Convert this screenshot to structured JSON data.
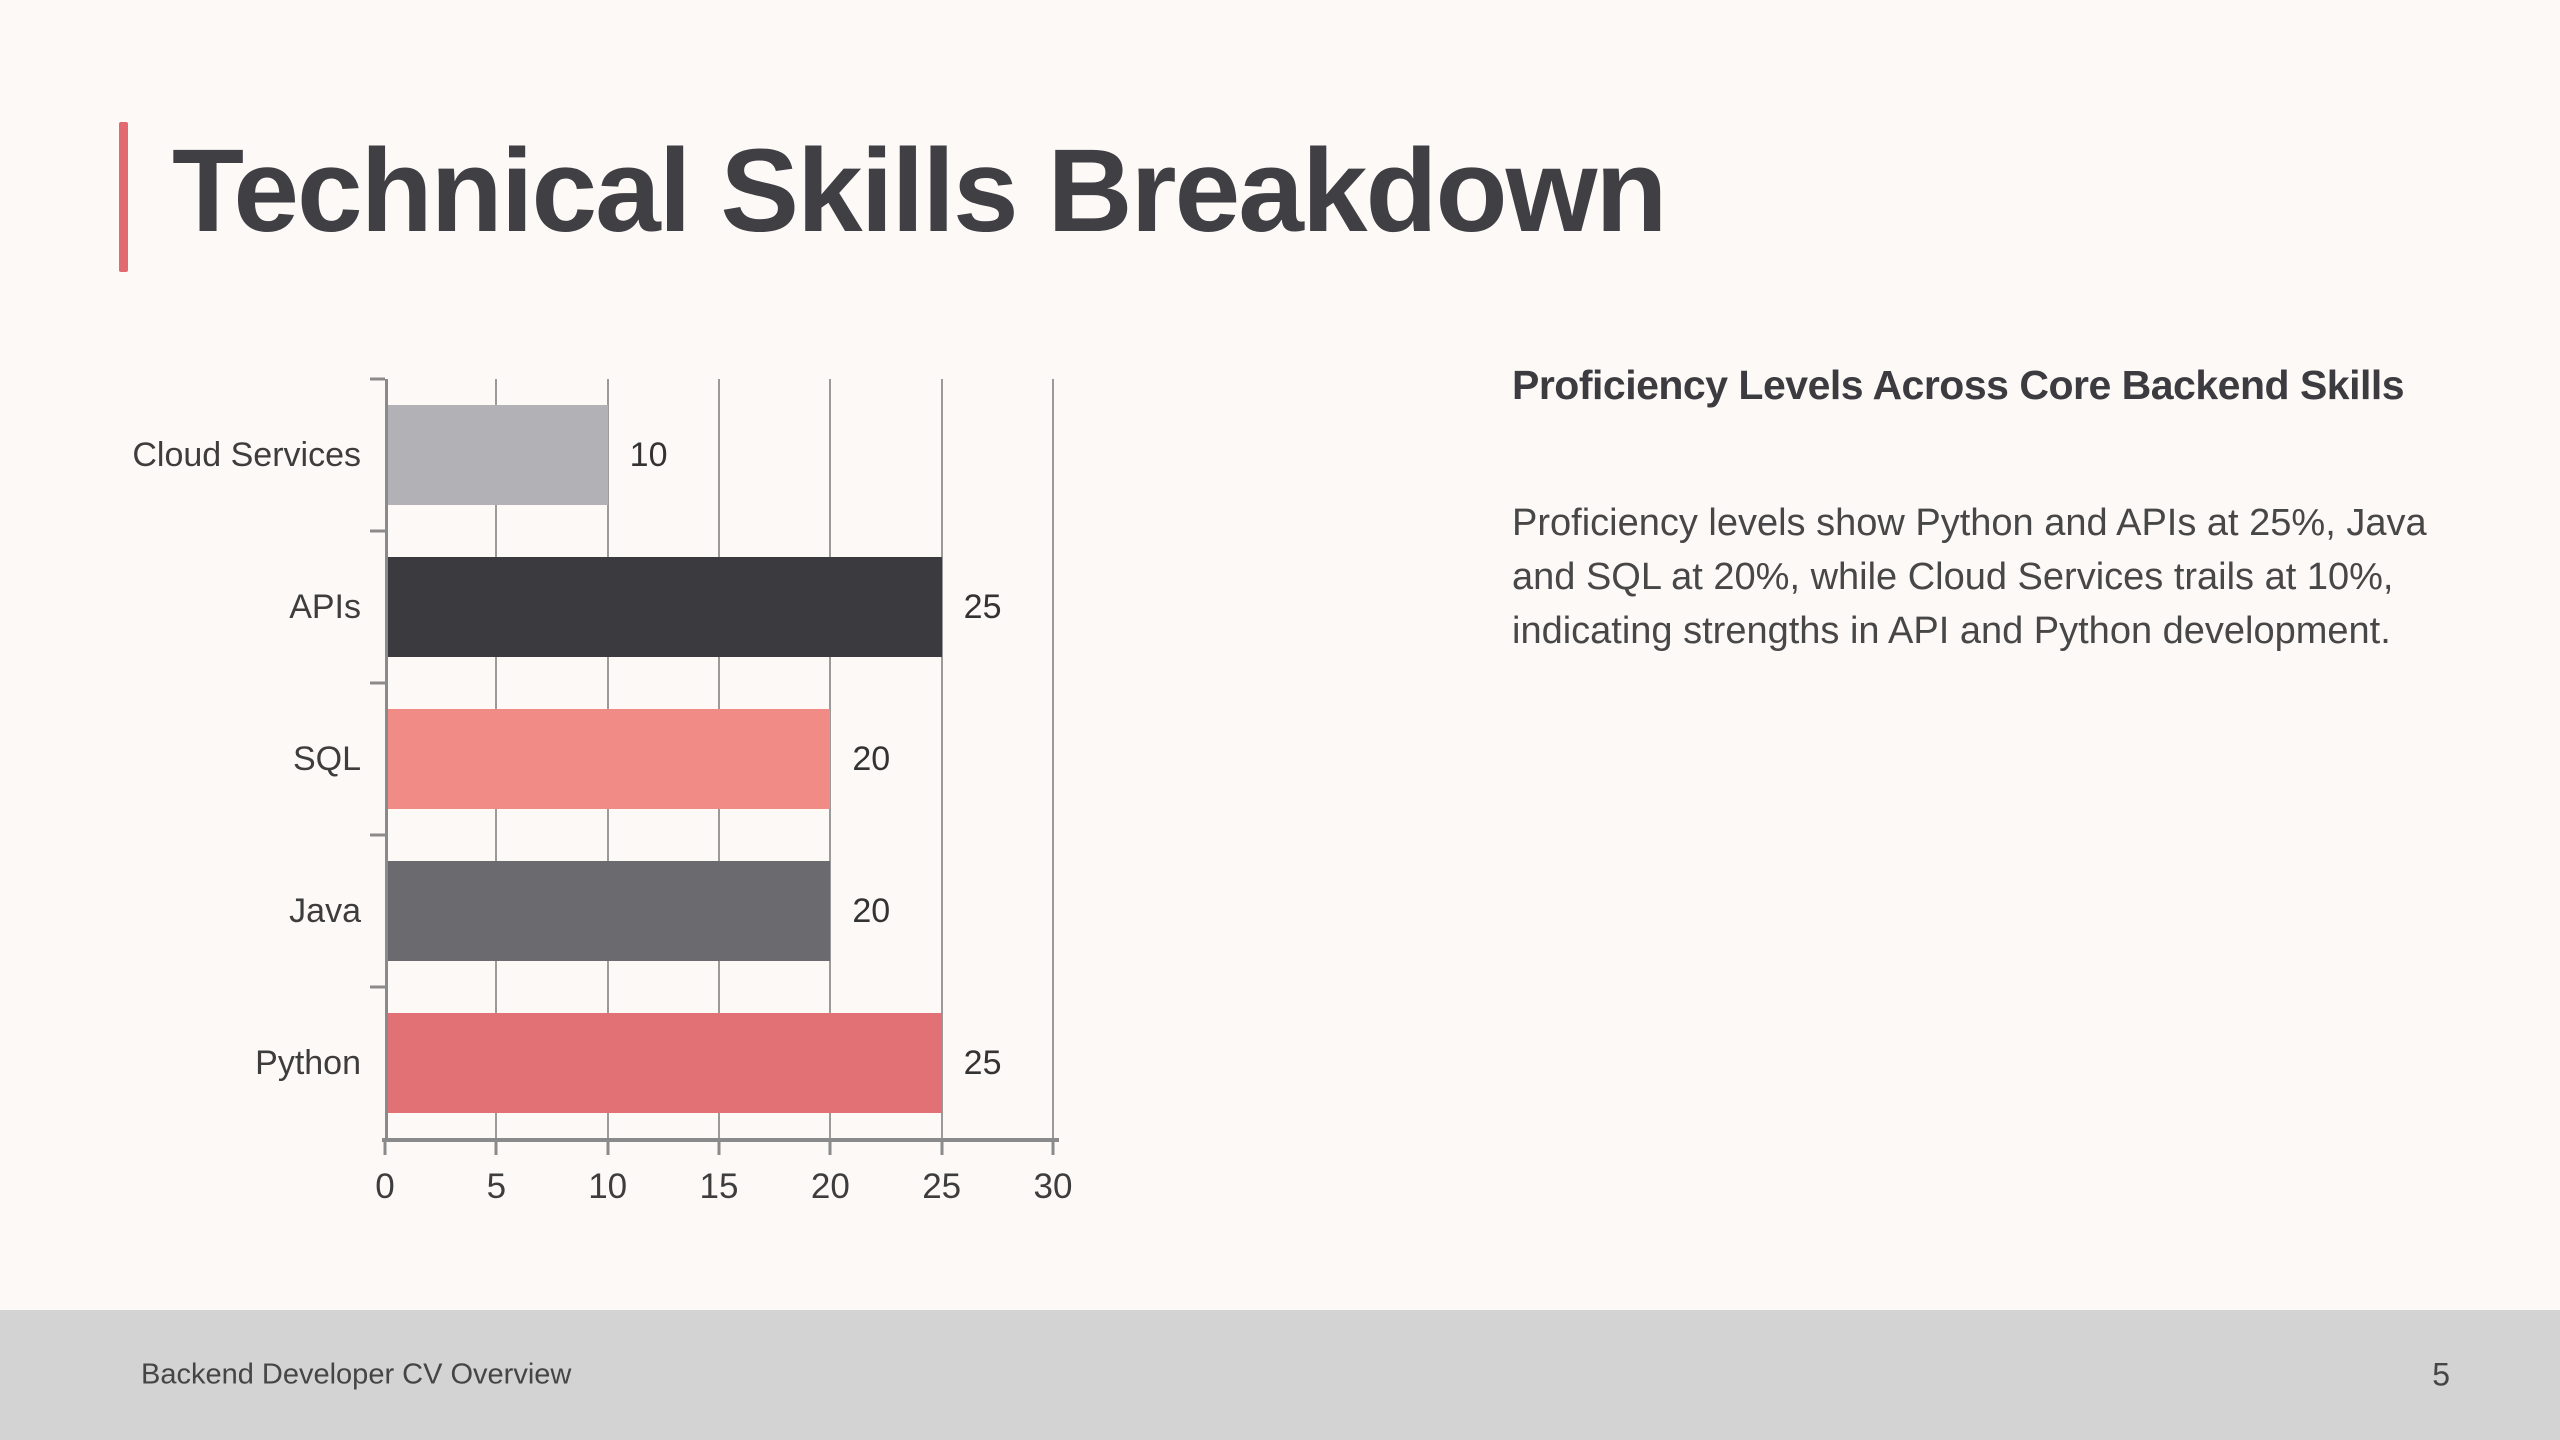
{
  "slide": {
    "title": "Technical Skills Breakdown",
    "footer_text": "Backend Developer CV Overview",
    "page_number": "5",
    "accent_color": "#e2696f",
    "background_color": "#fdf9f7",
    "footer_bg_color": "#d3d3d3",
    "title_color": "#3f3f44"
  },
  "text_panel": {
    "heading": "Proficiency Levels Across Core Backend Skills",
    "body": "Proficiency levels show Python and APIs at 25%, Java and SQL at 20%, while Cloud Services trails at 10%, indicating strengths in API and Python development."
  },
  "chart_data": {
    "type": "bar",
    "orientation": "horizontal",
    "title": "",
    "xlabel": "",
    "ylabel": "",
    "categories": [
      "Cloud Services",
      "APIs",
      "SQL",
      "Java",
      "Python"
    ],
    "values": [
      10,
      25,
      20,
      20,
      25
    ],
    "value_labels": [
      "10",
      "25",
      "20",
      "20",
      "25"
    ],
    "bar_colors": [
      "#b1b1b6",
      "#3a3a3f",
      "#f08b85",
      "#6a6a6f",
      "#e17174"
    ],
    "xticks": [
      0,
      5,
      10,
      15,
      20,
      25,
      30
    ],
    "xlim": [
      0,
      30
    ],
    "grid": true,
    "gridline_color": "#9a9a9a",
    "axis_color": "#8a8a8a",
    "label_color": "#3d3d3d"
  }
}
